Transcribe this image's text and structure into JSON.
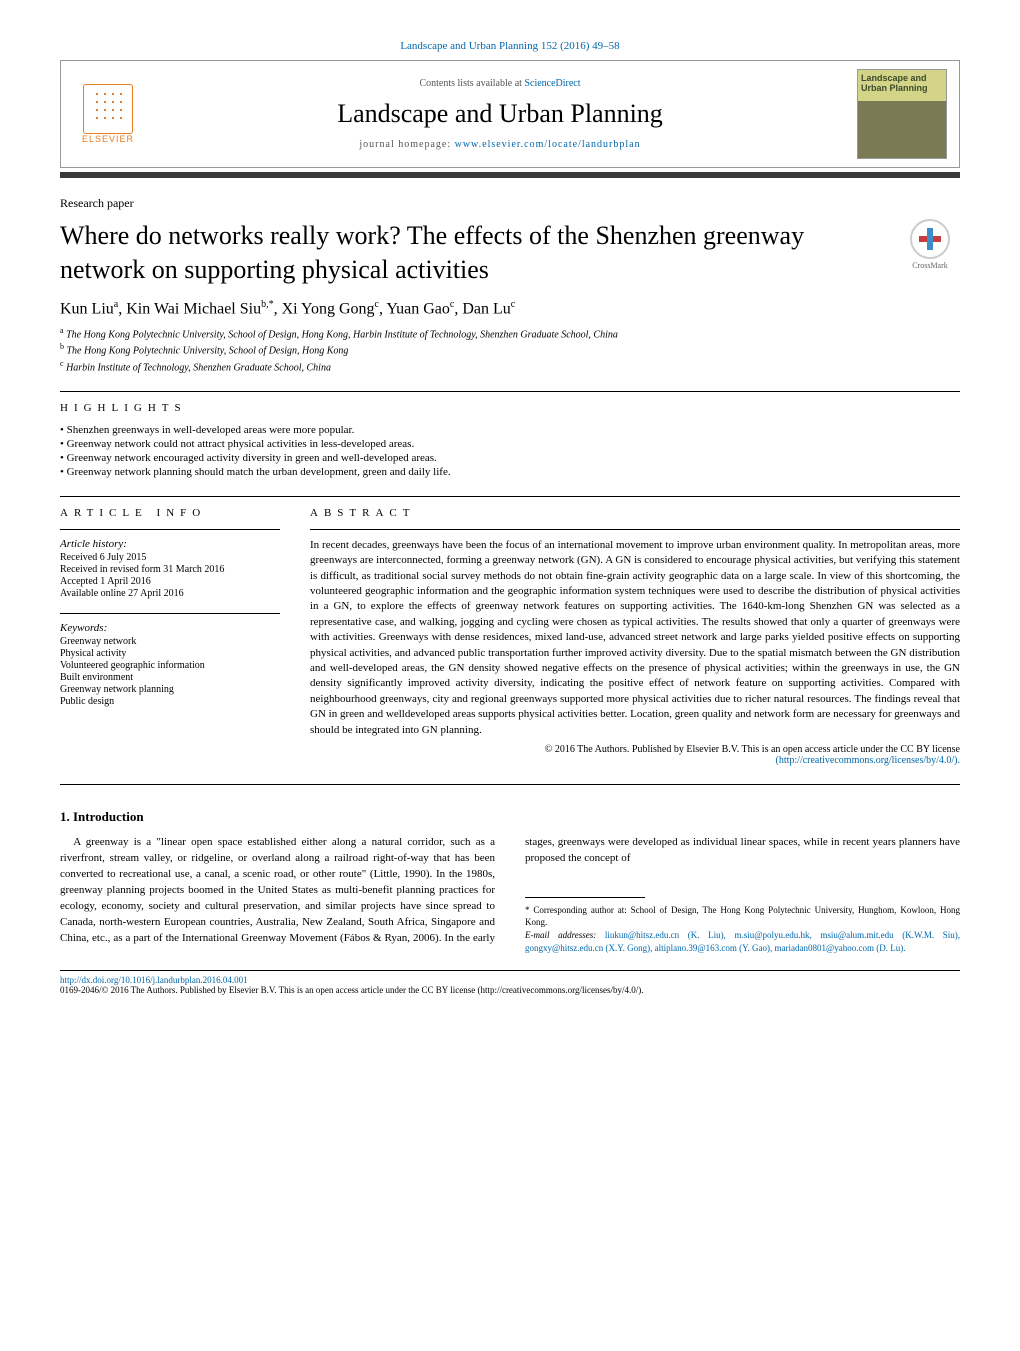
{
  "header": {
    "citation": "Landscape and Urban Planning 152 (2016) 49–58",
    "contents_prefix": "Contents lists available at ",
    "contents_link": "ScienceDirect",
    "journal": "Landscape and Urban Planning",
    "homepage_prefix": "journal homepage: ",
    "homepage_url": "www.elsevier.com/locate/landurbplan",
    "publisher": "ELSEVIER",
    "cover_text": "Landscape and Urban Planning"
  },
  "crossmark": "CrossMark",
  "paper_type": "Research paper",
  "title": "Where do networks really work? The effects of the Shenzhen greenway network on supporting physical activities",
  "authors_html": "Kun Liu<sup>a</sup>, Kin Wai Michael Siu<sup>b,*</sup>, Xi Yong Gong<sup>c</sup>, Yuan Gao<sup>c</sup>, Dan Lu<sup>c</sup>",
  "affiliations": [
    {
      "sup": "a",
      "text": "The Hong Kong Polytechnic University, School of Design, Hong Kong, Harbin Institute of Technology, Shenzhen Graduate School, China"
    },
    {
      "sup": "b",
      "text": "The Hong Kong Polytechnic University, School of Design, Hong Kong"
    },
    {
      "sup": "c",
      "text": "Harbin Institute of Technology, Shenzhen Graduate School, China"
    }
  ],
  "highlights_label": "HIGHLIGHTS",
  "highlights": [
    "Shenzhen greenways in well-developed areas were more popular.",
    "Greenway network could not attract physical activities in less-developed areas.",
    "Greenway network encouraged activity diversity in green and well-developed areas.",
    "Greenway network planning should match the urban development, green and daily life."
  ],
  "article_info_label": "ARTICLE INFO",
  "abstract_label": "ABSTRACT",
  "history": {
    "heading": "Article history:",
    "lines": [
      "Received 6 July 2015",
      "Received in revised form 31 March 2016",
      "Accepted 1 April 2016",
      "Available online 27 April 2016"
    ]
  },
  "keywords": {
    "heading": "Keywords:",
    "items": [
      "Greenway network",
      "Physical activity",
      "Volunteered geographic information",
      "Built environment",
      "Greenway network planning",
      "Public design"
    ]
  },
  "abstract": "In recent decades, greenways have been the focus of an international movement to improve urban environment quality. In metropolitan areas, more greenways are interconnected, forming a greenway network (GN). A GN is considered to encourage physical activities, but verifying this statement is difficult, as traditional social survey methods do not obtain fine-grain activity geographic data on a large scale. In view of this shortcoming, the volunteered geographic information and the geographic information system techniques were used to describe the distribution of physical activities in a GN, to explore the effects of greenway network features on supporting activities. The 1640-km-long Shenzhen GN was selected as a representative case, and walking, jogging and cycling were chosen as typical activities. The results showed that only a quarter of greenways were with activities. Greenways with dense residences, mixed land-use, advanced street network and large parks yielded positive effects on supporting physical activities, and advanced public transportation further improved activity diversity. Due to the spatial mismatch between the GN distribution and well-developed areas, the GN density showed negative effects on the presence of physical activities; within the greenways in use, the GN density significantly improved activity diversity, indicating the positive effect of network feature on supporting activities. Compared with neighbourhood greenways, city and regional greenways supported more physical activities due to richer natural resources. The findings reveal that GN in green and welldeveloped areas supports physical activities better. Location, green quality and network form are necessary for greenways and should be integrated into GN planning.",
  "copyright_line": "© 2016 The Authors. Published by Elsevier B.V. This is an open access article under the CC BY license",
  "copyright_url": "(http://creativecommons.org/licenses/by/4.0/).",
  "intro": {
    "heading": "1. Introduction",
    "para1": "A greenway is a \"linear open space established either along a natural corridor, such as a riverfront, stream valley, or ridgeline, or",
    "para1_cont": "overland along a railroad right-of-way that has been converted to recreational use, a canal, a scenic road, or other route\" (Little, 1990). In the 1980s, greenway planning projects boomed in the United States as multi-benefit planning practices for ecology, economy, society and cultural preservation, and similar projects have since spread to Canada, north-western European countries, Australia, New Zealand, South Africa, Singapore and China, etc., as a part of the International Greenway Movement (Fábos & Ryan, 2006). In the early stages, greenways were developed as individual linear spaces, while in recent years planners have proposed the concept of"
  },
  "footnotes": {
    "corr": "* Corresponding author at: School of Design, The Hong Kong Polytechnic University, Hunghom, Kowloon, Hong Kong.",
    "email_label": "E-mail addresses: ",
    "emails": "liukun@hitsz.edu.cn (K. Liu), m.siu@polyu.edu.hk, msiu@alum.mit.edu (K.W.M. Siu), gongxy@hitsz.edu.cn (X.Y. Gong), altiplano.39@163.com (Y. Gao), mariadan0801@yahoo.com (D. Lu)."
  },
  "footer": {
    "doi": "http://dx.doi.org/10.1016/j.landurbplan.2016.04.001",
    "line": "0169-2046/© 2016 The Authors. Published by Elsevier B.V. This is an open access article under the CC BY license (http://creativecommons.org/licenses/by/4.0/)."
  },
  "colors": {
    "link": "#0066aa",
    "elsevier_orange": "#e67e22",
    "dark_bar": "#3a3a3a"
  }
}
